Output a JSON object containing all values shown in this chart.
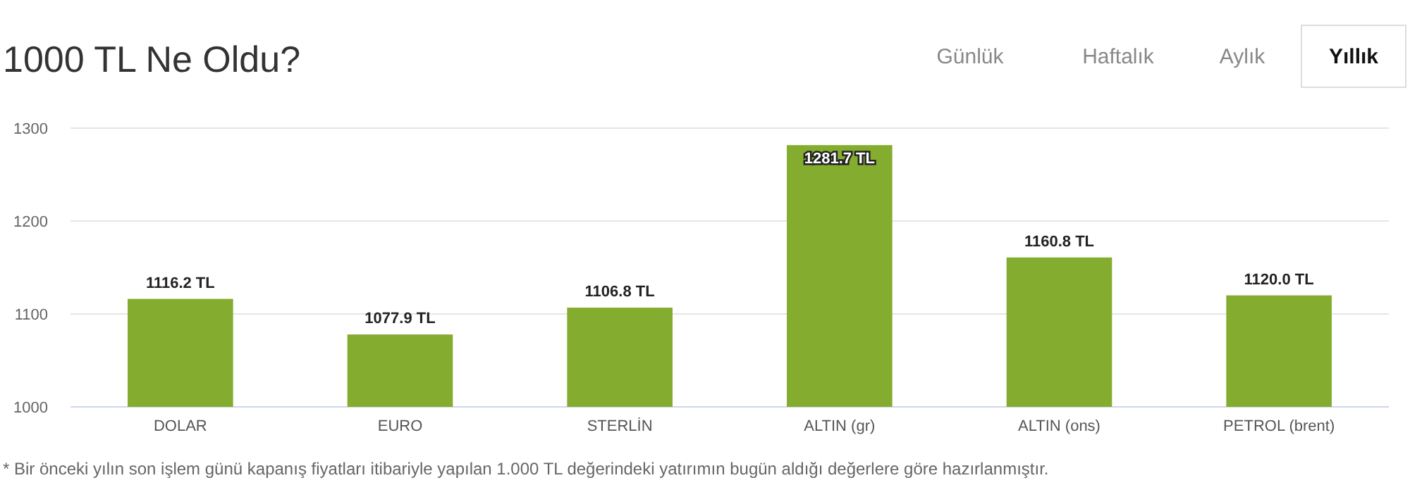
{
  "chart_data": {
    "type": "bar",
    "title": "1000 TL Ne Oldu?",
    "categories": [
      "DOLAR",
      "EURO",
      "STERLİN",
      "ALTIN (gr)",
      "ALTIN (ons)",
      "PETROL (brent)"
    ],
    "values": [
      1116.2,
      1077.9,
      1106.8,
      1281.7,
      1160.8,
      1120.0
    ],
    "value_labels": [
      "1116.2 TL",
      "1077.9 TL",
      "1106.8 TL",
      "1281.7 TL",
      "1160.8 TL",
      "1120.0 TL"
    ],
    "color": "#84ac2f",
    "ylim": [
      1000,
      1300
    ],
    "yticks": [
      1000,
      1100,
      1200,
      1300
    ],
    "grid": "y",
    "annotations": [
      "Günlük",
      "Haftalık",
      "Aylık",
      "Yıllık",
      "* Bir önceki yılın son işlem günü kapanış fiyatları itibariyle yapılan 1.000 TL değerindeki yatırımın bugün aldığı değerlere göre hazırlanmıştır."
    ]
  }
}
